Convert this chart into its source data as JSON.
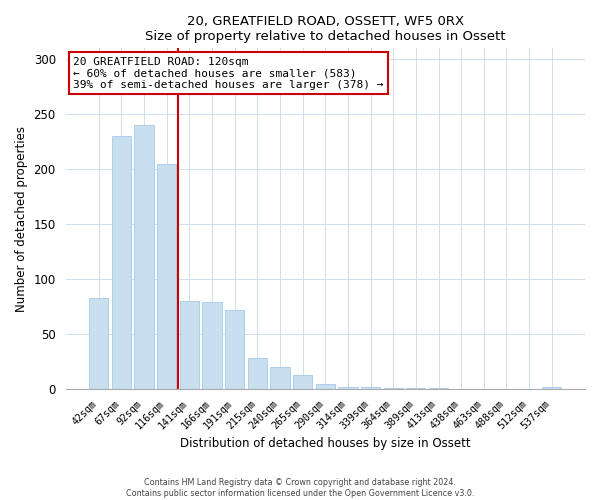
{
  "title": "20, GREATFIELD ROAD, OSSETT, WF5 0RX",
  "subtitle": "Size of property relative to detached houses in Ossett",
  "xlabel": "Distribution of detached houses by size in Ossett",
  "ylabel": "Number of detached properties",
  "bar_labels": [
    "42sqm",
    "67sqm",
    "92sqm",
    "116sqm",
    "141sqm",
    "166sqm",
    "191sqm",
    "215sqm",
    "240sqm",
    "265sqm",
    "290sqm",
    "314sqm",
    "339sqm",
    "364sqm",
    "389sqm",
    "413sqm",
    "438sqm",
    "463sqm",
    "488sqm",
    "512sqm",
    "537sqm"
  ],
  "bar_values": [
    83,
    230,
    240,
    205,
    80,
    79,
    72,
    28,
    20,
    13,
    5,
    2,
    2,
    1,
    1,
    1,
    0,
    0,
    0,
    0,
    2
  ],
  "bar_color": "#c8dff0",
  "bar_edge_color": "#a8c8e8",
  "vline_color": "#cc0000",
  "annotation_title": "20 GREATFIELD ROAD: 120sqm",
  "annotation_line1": "← 60% of detached houses are smaller (583)",
  "annotation_line2": "39% of semi-detached houses are larger (378) →",
  "annotation_box_facecolor": "#ffffff",
  "annotation_box_edgecolor": "#cc0000",
  "ylim": [
    0,
    310
  ],
  "yticks": [
    0,
    50,
    100,
    150,
    200,
    250,
    300
  ],
  "grid_color": "#d0dded",
  "footer1": "Contains HM Land Registry data © Crown copyright and database right 2024.",
  "footer2": "Contains public sector information licensed under the Open Government Licence v3.0."
}
